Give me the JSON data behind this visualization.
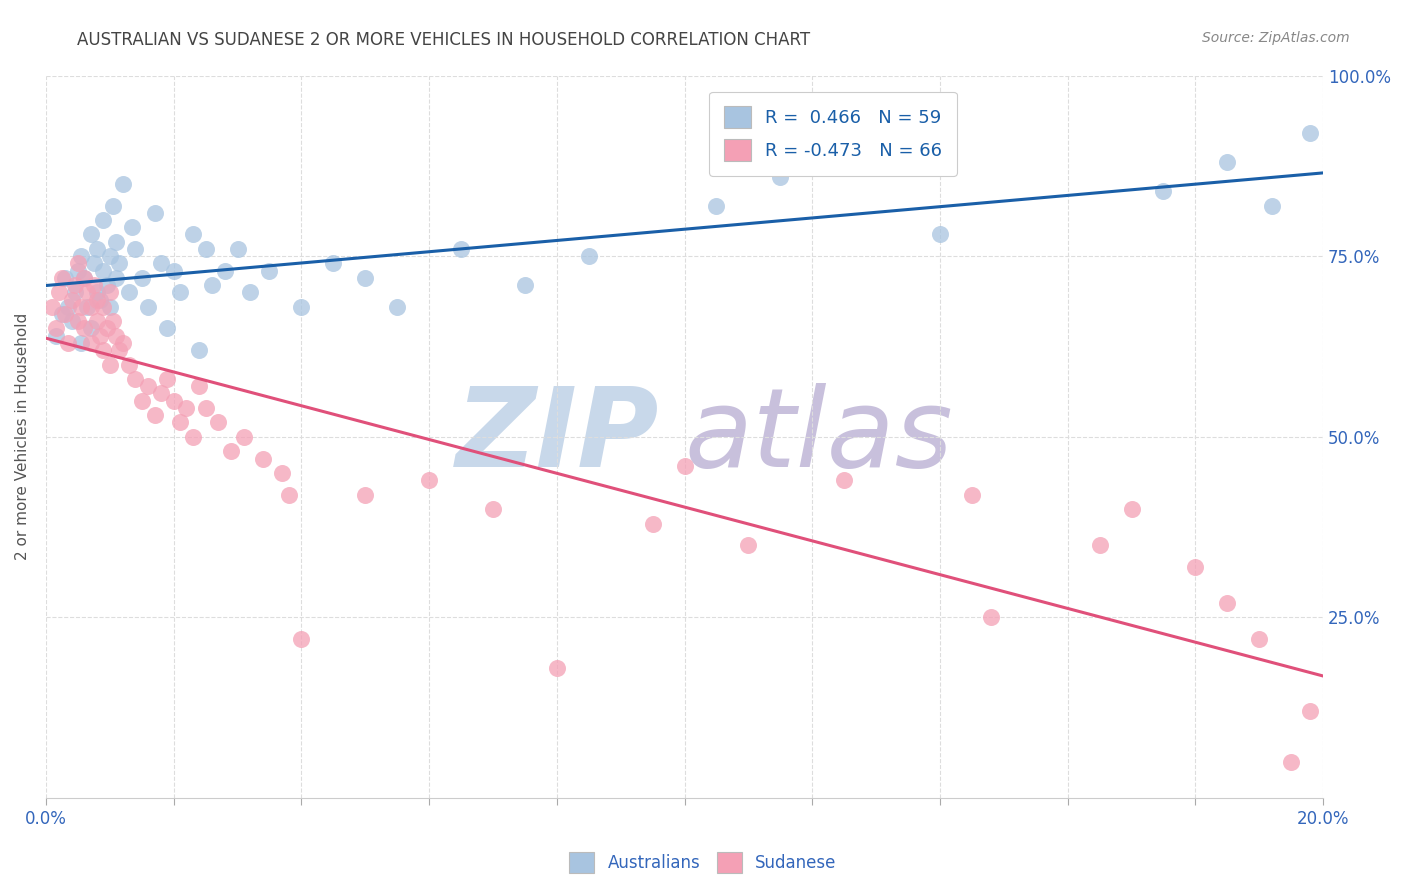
{
  "title": "AUSTRALIAN VS SUDANESE 2 OR MORE VEHICLES IN HOUSEHOLD CORRELATION CHART",
  "source": "Source: ZipAtlas.com",
  "ylabel": "2 or more Vehicles in Household",
  "xlim": [
    0.0,
    20.0
  ],
  "ylim": [
    0.0,
    100.0
  ],
  "yticks_right": [
    25.0,
    50.0,
    75.0,
    100.0
  ],
  "xticks": [
    0.0,
    2.0,
    4.0,
    6.0,
    8.0,
    10.0,
    12.0,
    14.0,
    16.0,
    18.0,
    20.0
  ],
  "legend_r_blue": "R =  0.466",
  "legend_n_blue": "N = 59",
  "legend_r_pink": "R = -0.473",
  "legend_n_pink": "N = 66",
  "blue_color": "#a8c4e0",
  "pink_color": "#f4a0b5",
  "blue_line_color": "#1a5fa8",
  "pink_line_color": "#e0507a",
  "watermark_zip_color": "#c8d8ea",
  "watermark_atlas_color": "#c8c0dc",
  "background_color": "#ffffff",
  "grid_color": "#dddddd",
  "title_color": "#444444",
  "source_color": "#888888",
  "axis_label_color": "#3366bb",
  "blue_x": [
    0.15,
    0.25,
    0.3,
    0.35,
    0.4,
    0.45,
    0.5,
    0.55,
    0.55,
    0.6,
    0.65,
    0.7,
    0.7,
    0.75,
    0.8,
    0.8,
    0.85,
    0.9,
    0.9,
    0.95,
    1.0,
    1.0,
    1.05,
    1.1,
    1.1,
    1.15,
    1.2,
    1.3,
    1.35,
    1.4,
    1.5,
    1.6,
    1.7,
    1.8,
    1.9,
    2.0,
    2.1,
    2.3,
    2.4,
    2.5,
    2.6,
    2.8,
    3.0,
    3.2,
    3.5,
    4.0,
    4.5,
    5.0,
    5.5,
    6.5,
    7.5,
    8.5,
    10.5,
    11.5,
    14.0,
    17.5,
    18.5,
    19.2,
    19.8
  ],
  "blue_y": [
    64,
    67,
    72,
    68,
    66,
    70,
    73,
    75,
    63,
    72,
    68,
    78,
    65,
    74,
    76,
    70,
    69,
    80,
    73,
    71,
    75,
    68,
    82,
    77,
    72,
    74,
    85,
    70,
    79,
    76,
    72,
    68,
    81,
    74,
    65,
    73,
    70,
    78,
    62,
    76,
    71,
    73,
    76,
    70,
    73,
    68,
    74,
    72,
    68,
    76,
    71,
    75,
    82,
    86,
    78,
    84,
    88,
    82,
    92
  ],
  "pink_x": [
    0.1,
    0.15,
    0.2,
    0.25,
    0.3,
    0.35,
    0.4,
    0.45,
    0.5,
    0.5,
    0.55,
    0.6,
    0.6,
    0.65,
    0.7,
    0.7,
    0.75,
    0.8,
    0.8,
    0.85,
    0.9,
    0.9,
    0.95,
    1.0,
    1.0,
    1.05,
    1.1,
    1.15,
    1.2,
    1.3,
    1.4,
    1.5,
    1.6,
    1.7,
    1.8,
    1.9,
    2.0,
    2.1,
    2.2,
    2.3,
    2.5,
    2.7,
    2.9,
    3.1,
    3.4,
    3.7,
    4.0,
    5.0,
    6.0,
    7.0,
    8.0,
    9.5,
    11.0,
    12.5,
    14.5,
    16.5,
    17.0,
    18.0,
    18.5,
    19.0,
    19.5,
    3.8,
    2.4,
    10.0,
    14.8,
    19.8
  ],
  "pink_y": [
    68,
    65,
    70,
    72,
    67,
    63,
    69,
    71,
    74,
    66,
    68,
    72,
    65,
    70,
    68,
    63,
    71,
    69,
    66,
    64,
    68,
    62,
    65,
    70,
    60,
    66,
    64,
    62,
    63,
    60,
    58,
    55,
    57,
    53,
    56,
    58,
    55,
    52,
    54,
    50,
    54,
    52,
    48,
    50,
    47,
    45,
    22,
    42,
    44,
    40,
    18,
    38,
    35,
    44,
    42,
    35,
    40,
    32,
    27,
    22,
    5,
    42,
    57,
    46,
    25,
    12
  ]
}
